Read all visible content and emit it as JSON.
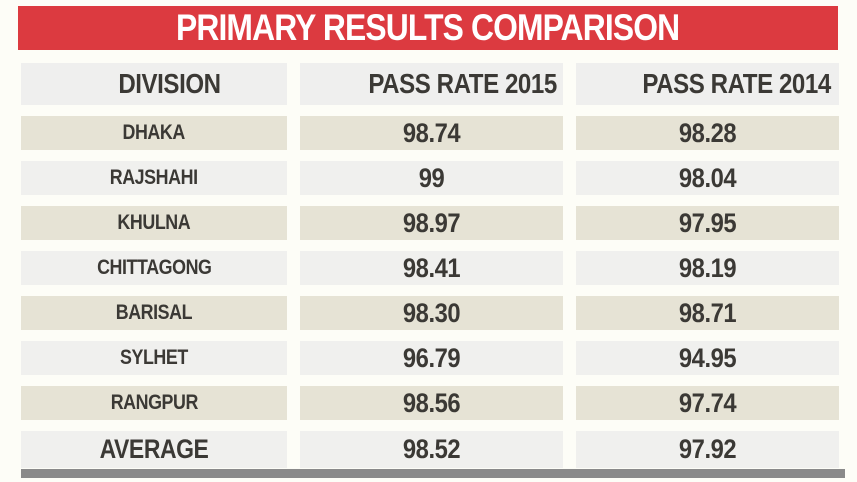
{
  "title": "PRIMARY RESULTS COMPARISON",
  "table": {
    "columns": [
      "DIVISION",
      "PASS RATE 2015",
      "PASS RATE 2014"
    ],
    "rows": [
      {
        "division": "DHAKA",
        "rate_2015": "98.74",
        "rate_2014": "98.28"
      },
      {
        "division": "RAJSHAHI",
        "rate_2015": "99",
        "rate_2014": "98.04"
      },
      {
        "division": "KHULNA",
        "rate_2015": "98.97",
        "rate_2014": "97.95"
      },
      {
        "division": "CHITTAGONG",
        "rate_2015": "98.41",
        "rate_2014": "98.19"
      },
      {
        "division": "BARISAL",
        "rate_2015": "98.30",
        "rate_2014": "98.71"
      },
      {
        "division": "SYLHET",
        "rate_2015": "96.79",
        "rate_2014": "94.95"
      },
      {
        "division": "RANGPUR",
        "rate_2015": "98.56",
        "rate_2014": "97.74"
      },
      {
        "division": "AVERAGE",
        "rate_2015": "98.52",
        "rate_2014": "97.92"
      }
    ]
  },
  "chart_data": {
    "type": "table",
    "title": "PRIMARY RESULTS COMPARISON",
    "categories": [
      "DHAKA",
      "RAJSHAHI",
      "KHULNA",
      "CHITTAGONG",
      "BARISAL",
      "SYLHET",
      "RANGPUR",
      "AVERAGE"
    ],
    "series": [
      {
        "name": "PASS RATE 2015",
        "values": [
          98.74,
          99,
          98.97,
          98.41,
          98.3,
          96.79,
          98.56,
          98.52
        ]
      },
      {
        "name": "PASS RATE 2014",
        "values": [
          98.28,
          98.04,
          97.95,
          98.19,
          98.71,
          94.95,
          97.74,
          97.92
        ]
      }
    ],
    "layout_hints": {
      "header_position": "top-banner",
      "row_striping": [
        "beige",
        "light-gray"
      ],
      "grid": "off"
    }
  },
  "colors": {
    "banner_red": "#dc3a40",
    "title_text": "#ffffff",
    "row_beige": "#e6e3d5",
    "row_gray": "#f0f0ee",
    "header_gray": "#efefee",
    "text_dark": "#3b3935",
    "bottom_bar_gray": "#8a8a8a",
    "background": "#fdfdf7"
  }
}
